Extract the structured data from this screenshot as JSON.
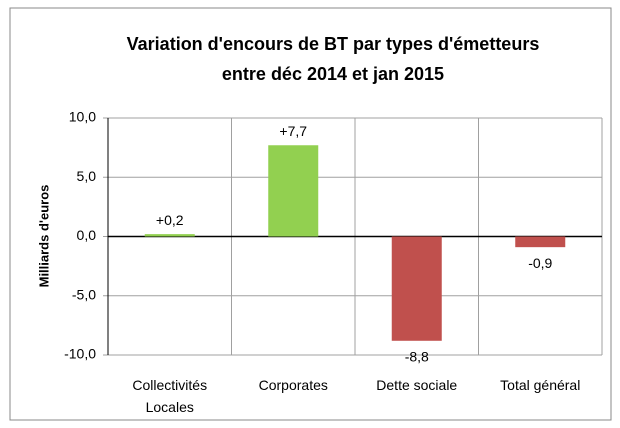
{
  "chart_data": {
    "type": "bar",
    "title": [
      "Variation d'encours de BT par types d'émetteurs",
      "entre déc 2014 et jan 2015"
    ],
    "y_label": "Milliards  d'euros",
    "categories": [
      "Collectivités Locales",
      "Corporates",
      "Dette sociale",
      "Total général"
    ],
    "values": [
      0.2,
      7.7,
      -8.8,
      -0.9
    ],
    "value_labels": [
      "+0,2",
      "+7,7",
      "-8,8",
      "-0,9"
    ],
    "colors": [
      "#92d050",
      "#92d050",
      "#c0504d",
      "#c0504d"
    ],
    "ylim": [
      -10,
      10
    ],
    "yticks": [
      {
        "value": -10,
        "label": "-10,0"
      },
      {
        "value": -5,
        "label": "-5,0"
      },
      {
        "value": 0,
        "label": "0,0"
      },
      {
        "value": 5,
        "label": "5,0"
      },
      {
        "value": 10,
        "label": "10,0"
      }
    ],
    "grid": true
  }
}
